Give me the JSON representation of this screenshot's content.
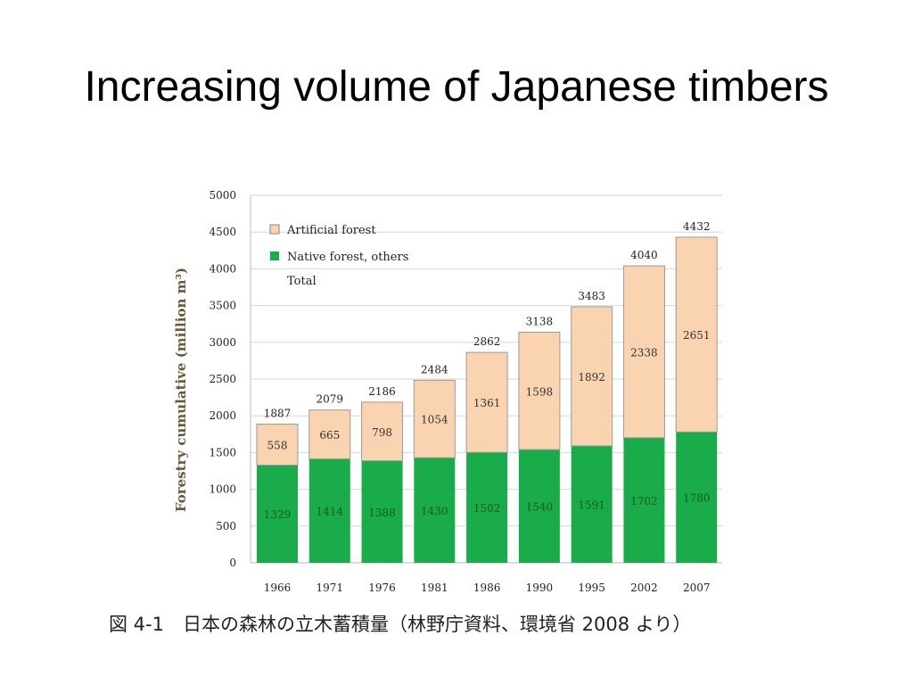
{
  "slide": {
    "title": "Increasing volume of Japanese timbers",
    "caption": "図 4-1　日本の森林の立木蓄積量（林野庁資料、環境省 2008 より）"
  },
  "chart_data": {
    "type": "bar",
    "stacked": true,
    "categories": [
      "1966",
      "1971",
      "1976",
      "1981",
      "1986",
      "1990",
      "1995",
      "2002",
      "2007"
    ],
    "series": [
      {
        "name": "Native forest, others",
        "color": "#1aac4a",
        "values": [
          1329,
          1414,
          1388,
          1430,
          1502,
          1540,
          1591,
          1702,
          1780
        ]
      },
      {
        "name": "Artificial forest",
        "color": "#fad3b0",
        "values": [
          558,
          665,
          798,
          1054,
          1361,
          1598,
          1892,
          2338,
          2651
        ]
      }
    ],
    "totals": [
      1887,
      2079,
      2186,
      2484,
      2862,
      3138,
      3483,
      4040,
      4432
    ],
    "total_label": "Total",
    "ylabel": "Forestry cumulative (million m³)",
    "ylim": [
      0,
      5000
    ],
    "yticks": [
      0,
      500,
      1000,
      1500,
      2000,
      2500,
      3000,
      3500,
      4000,
      4500,
      5000
    ],
    "grid": true,
    "legend": "top-left"
  }
}
